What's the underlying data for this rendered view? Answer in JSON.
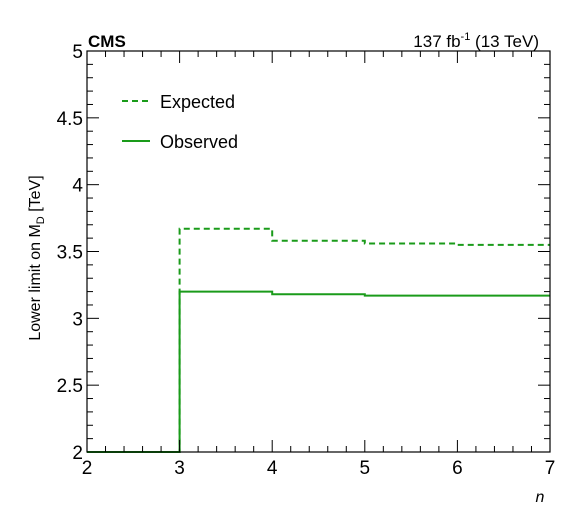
{
  "chart_data": {
    "type": "line",
    "experiment_label": "CMS",
    "lumi_label": {
      "value": "137 fb",
      "exponent": "-1",
      "energy": " (13 TeV)"
    },
    "xlabel": "n",
    "ylabel": {
      "prefix": "Lower limit on M",
      "subscript": "D",
      "suffix": " [TeV]"
    },
    "xlim": [
      2,
      7
    ],
    "ylim": [
      2,
      5
    ],
    "xticks": [
      "2",
      "3",
      "4",
      "5",
      "6",
      "7"
    ],
    "yticks": [
      "2",
      "2.5",
      "3",
      "3.5",
      "4",
      "4.5",
      "5"
    ],
    "grid": false,
    "legend_position": "top-left",
    "color": "#1a9b1a",
    "series": [
      {
        "name": "Expected",
        "style": "dashed",
        "bins": [
          {
            "x0": 2,
            "x1": 3,
            "y": 2.0
          },
          {
            "x0": 3,
            "x1": 4,
            "y": 3.67
          },
          {
            "x0": 4,
            "x1": 5,
            "y": 3.58
          },
          {
            "x0": 5,
            "x1": 6,
            "y": 3.56
          },
          {
            "x0": 6,
            "x1": 7,
            "y": 3.55
          }
        ]
      },
      {
        "name": "Observed",
        "style": "solid",
        "bins": [
          {
            "x0": 2,
            "x1": 3,
            "y": 2.0
          },
          {
            "x0": 3,
            "x1": 4,
            "y": 3.2
          },
          {
            "x0": 4,
            "x1": 5,
            "y": 3.18
          },
          {
            "x0": 5,
            "x1": 6,
            "y": 3.17
          },
          {
            "x0": 6,
            "x1": 7,
            "y": 3.17
          }
        ]
      }
    ]
  }
}
